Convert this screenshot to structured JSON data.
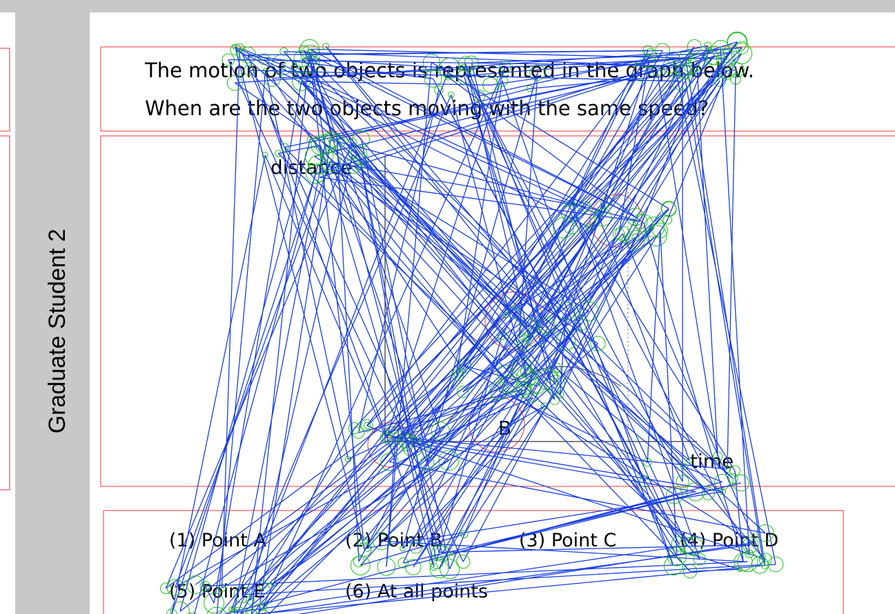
{
  "participant": "Graduate Student 2",
  "question": {
    "lines": [
      "The motion of two objects is represented in the graph below.",
      "When are the two objects moving with the same speed?"
    ]
  },
  "graph": {
    "y_label": "distance",
    "x_label": "time",
    "points": [
      "B"
    ]
  },
  "options": [
    "(1) Point A",
    "(2) Point B",
    "(3) Point C",
    "(4) Point D",
    "(5) Point E",
    "(6) At all points"
  ]
}
